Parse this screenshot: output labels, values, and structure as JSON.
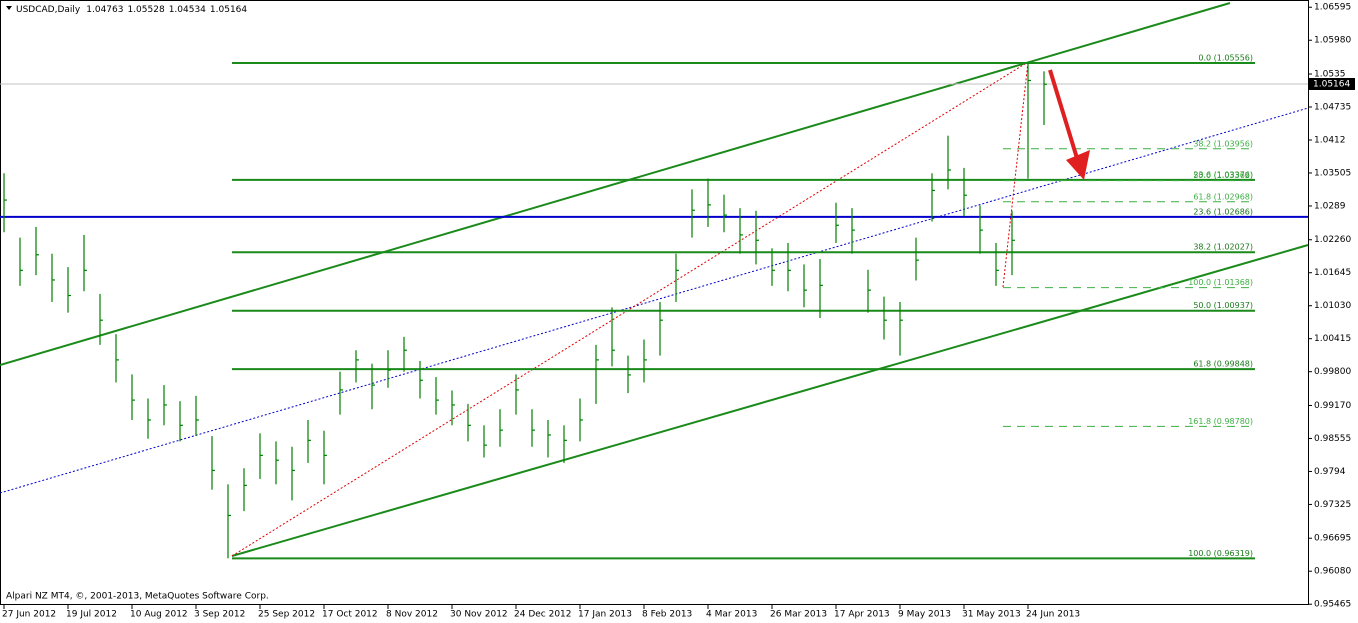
{
  "chart_data": {
    "type": "ohlc",
    "title": "USDCAD,Daily",
    "ohlc_header": [
      1.04763,
      1.05528,
      1.04534,
      1.05164
    ],
    "footer": "Alpari NZ MT4, ©, 2001-2013, MetaQuotes Software Corp.",
    "categories": [
      "27 Jun 2012",
      null,
      null,
      null,
      "19 Jul 2012",
      null,
      null,
      null,
      "10 Aug 2012",
      null,
      null,
      null,
      "3 Sep 2012",
      null,
      null,
      null,
      "25 Sep 2012",
      null,
      null,
      null,
      "17 Oct 2012",
      null,
      null,
      null,
      "8 Nov 2012",
      null,
      null,
      null,
      "30 Nov 2012",
      null,
      null,
      null,
      "24 Dec 2012",
      null,
      null,
      null,
      "17 Jan 2013",
      null,
      null,
      null,
      "8 Feb 2013",
      null,
      null,
      null,
      "4 Mar 2013",
      null,
      null,
      null,
      "26 Mar 2013",
      null,
      null,
      null,
      "17 Apr 2013",
      null,
      null,
      null,
      "9 May 2013",
      null,
      null,
      null,
      "31 May 2013",
      null,
      null,
      null,
      "24 Jun 2013",
      null
    ],
    "high": [
      1.035,
      1.023,
      1.025,
      1.02,
      1.0175,
      1.0235,
      1.0125,
      1.005,
      0.9975,
      0.993,
      0.9955,
      0.9925,
      0.9935,
      0.986,
      0.977,
      0.98,
      0.9865,
      0.985,
      0.984,
      0.989,
      0.987,
      0.998,
      1.002,
      0.9995,
      1.002,
      1.0045,
      1.0,
      0.997,
      0.9945,
      0.992,
      0.988,
      0.991,
      0.9975,
      0.991,
      0.989,
      0.988,
      0.993,
      1.003,
      1.01,
      1.001,
      1.004,
      1.011,
      1.02,
      1.032,
      1.034,
      1.031,
      1.0285,
      1.028,
      1.021,
      1.022,
      1.018,
      1.019,
      1.0295,
      1.0285,
      1.017,
      1.012,
      1.011,
      1.023,
      1.035,
      1.042,
      1.036,
      1.029,
      1.022,
      1.028,
      1.0556,
      1.054
    ],
    "low": [
      1.024,
      1.014,
      1.016,
      1.011,
      1.009,
      1.013,
      1.003,
      0.996,
      0.989,
      0.9855,
      0.988,
      0.985,
      0.986,
      0.976,
      0.9632,
      0.972,
      0.978,
      0.977,
      0.974,
      0.981,
      0.977,
      0.99,
      0.996,
      0.991,
      0.995,
      0.998,
      0.993,
      0.99,
      0.988,
      0.985,
      0.982,
      0.984,
      0.99,
      0.984,
      0.982,
      0.981,
      0.985,
      0.992,
      0.999,
      0.994,
      0.996,
      1.001,
      1.011,
      1.023,
      1.025,
      1.024,
      1.02,
      1.018,
      1.014,
      1.013,
      1.01,
      1.008,
      1.022,
      1.02,
      1.009,
      1.004,
      1.001,
      1.015,
      1.026,
      1.032,
      1.027,
      1.02,
      1.014,
      1.016,
      1.034,
      1.044
    ],
    "close": [
      1.03,
      1.0169,
      1.0198,
      1.0151,
      1.0122,
      1.0169,
      1.0076,
      1.0002,
      0.9927,
      0.989,
      0.9918,
      0.988,
      0.989,
      0.9796,
      0.9712,
      0.9768,
      0.9824,
      0.9815,
      0.9796,
      0.9852,
      0.9824,
      0.9946,
      1.0002,
      0.9955,
      0.9983,
      1.002,
      0.9964,
      0.9927,
      0.9918,
      0.988,
      0.9843,
      0.9871,
      0.9946,
      0.9871,
      0.9862,
      0.9852,
      0.989,
      1.0002,
      1.002,
      0.9974,
      1.0002,
      1.0076,
      1.0169,
      1.0281,
      1.0291,
      1.0272,
      1.0235,
      1.0225,
      1.0169,
      1.0169,
      1.0132,
      1.0141,
      1.0253,
      1.0244,
      1.0132,
      1.0076,
      1.0076,
      1.0188,
      1.0318,
      1.0356,
      1.0309,
      1.0244,
      1.0169,
      1.0225,
      1.0523,
      1.0516
    ],
    "color": "#008000",
    "ylim": [
      0.9545,
      1.0673
    ],
    "yticks": [
      1.06595,
      {
        "value": 1.0598,
        "label": "1.05980"
      },
      1.0535,
      1.04735,
      1.0412,
      1.03505,
      1.0289,
      {
        "value": 1.0226,
        "label": "1.02260"
      },
      1.01645,
      {
        "value": 1.0103,
        "label": "1.01030"
      },
      1.00415,
      {
        "value": 0.998,
        "label": "0.99800"
      },
      {
        "value": 0.9917,
        "label": "0.99170"
      },
      0.98555,
      0.9794,
      0.97325,
      0.96695,
      {
        "value": 0.9608,
        "label": "0.96080"
      },
      0.95465
    ],
    "last_price": 1.05164,
    "fib_main": [
      {
        "value": 1.05556,
        "label": "0.0 (1.05556)"
      },
      {
        "value": 1.03376,
        "label": "23.6 (1.03376)"
      },
      {
        "value": 1.02027,
        "label": "38.2 (1.02027)"
      },
      {
        "value": 1.00937,
        "label": "50.0 (1.00937)"
      },
      {
        "value": 0.99848,
        "label": "61.8 (0.99848)"
      },
      {
        "value": 0.96319,
        "label": "100.0 (0.96319)"
      }
    ],
    "fib_secondary": [
      {
        "value": 1.03956,
        "label": "38.2 (1.03956)"
      },
      {
        "value": 1.03362,
        "label": "50.0 (1.03362)"
      },
      {
        "value": 1.02968,
        "label": "61.8 (1.02968)"
      },
      {
        "value": 1.01368,
        "label": "100.0 (1.01368)"
      },
      {
        "value": 0.9878,
        "label": "161.8 (0.98780)"
      }
    ],
    "blue_level": {
      "value": 1.02686,
      "label": "23.6 (1.02686)"
    }
  }
}
